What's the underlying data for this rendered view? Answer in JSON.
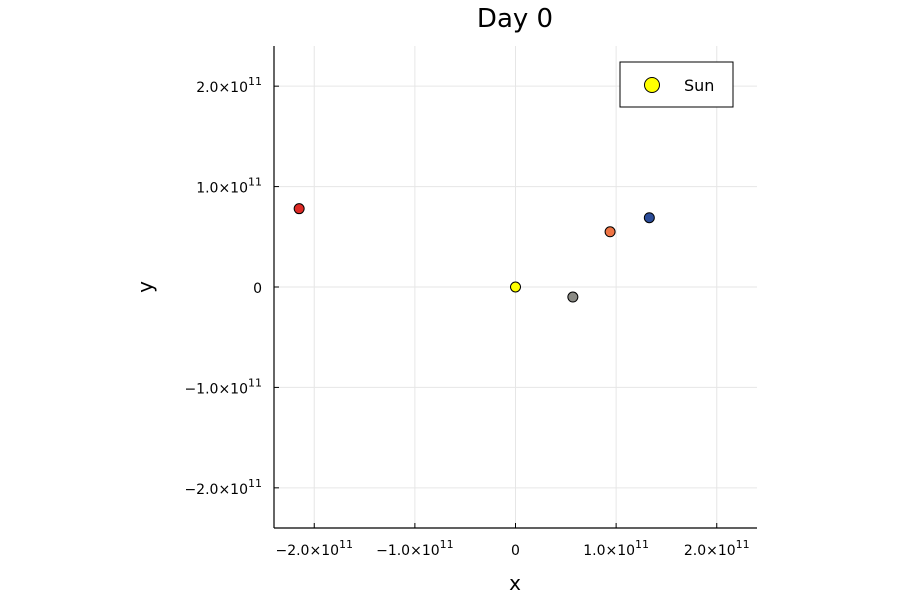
{
  "chart_data": {
    "type": "scatter",
    "title": "Day 0",
    "xlabel": "x",
    "ylabel": "y",
    "xlim": [
      -240000000000.0,
      240000000000.0
    ],
    "ylim": [
      -240000000000.0,
      240000000000.0
    ],
    "grid": true,
    "legend_position": "top-right",
    "x_ticks": [
      {
        "value": -200000000000.0,
        "mantissa": "−2.0×10",
        "exp": "11"
      },
      {
        "value": -100000000000.0,
        "mantissa": "−1.0×10",
        "exp": "11"
      },
      {
        "value": 0,
        "mantissa": "0",
        "exp": ""
      },
      {
        "value": 100000000000.0,
        "mantissa": "1.0×10",
        "exp": "11"
      },
      {
        "value": 200000000000.0,
        "mantissa": "2.0×10",
        "exp": "11"
      }
    ],
    "y_ticks": [
      {
        "value": 200000000000.0,
        "mantissa": "2.0×10",
        "exp": "11"
      },
      {
        "value": 100000000000.0,
        "mantissa": "1.0×10",
        "exp": "11"
      },
      {
        "value": 0,
        "mantissa": "0",
        "exp": ""
      },
      {
        "value": -100000000000.0,
        "mantissa": "−1.0×10",
        "exp": "11"
      },
      {
        "value": -200000000000.0,
        "mantissa": "−2.0×10",
        "exp": "11"
      }
    ],
    "legend": [
      {
        "label": "Sun",
        "color": "#ffff00"
      }
    ],
    "points": [
      {
        "x": 0,
        "y": 0,
        "color": "#ffff00"
      },
      {
        "x": -215000000000.0,
        "y": 78000000000.0,
        "color": "#dd2a25"
      },
      {
        "x": 57000000000.0,
        "y": -10000000000.0,
        "color": "#8a8a84"
      },
      {
        "x": 94000000000.0,
        "y": 55000000000.0,
        "color": "#ef7444"
      },
      {
        "x": 133000000000.0,
        "y": 69000000000.0,
        "color": "#2b4c98"
      }
    ]
  }
}
